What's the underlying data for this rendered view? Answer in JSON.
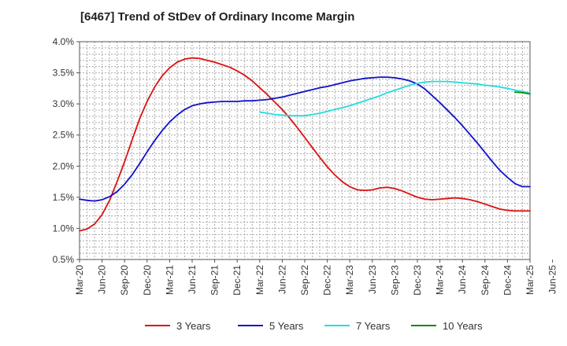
{
  "chart_data": {
    "type": "line",
    "title": "[6467]  Trend of StDev of Ordinary Income Margin",
    "xlabel": "",
    "ylabel": "",
    "x_ticks": [
      "Mar-20",
      "Jun-20",
      "Sep-20",
      "Dec-20",
      "Mar-21",
      "Jun-21",
      "Sep-21",
      "Dec-21",
      "Mar-22",
      "Jun-22",
      "Sep-22",
      "Dec-22",
      "Mar-23",
      "Jun-23",
      "Sep-23",
      "Dec-23",
      "Mar-24",
      "Jun-24",
      "Sep-24",
      "Dec-24",
      "Mar-25",
      "Jun-25"
    ],
    "y_ticks": [
      "4.0%",
      "3.5%",
      "3.0%",
      "2.5%",
      "2.0%",
      "1.5%",
      "1.0%",
      "0.5%"
    ],
    "ylim": [
      0.5,
      4.0
    ],
    "grid": true,
    "legend_position": "bottom",
    "series": [
      {
        "name": "3 Years",
        "color": "#dd1111",
        "x": [
          "Mar-20",
          "Apr-20",
          "May-20",
          "Jun-20",
          "Jul-20",
          "Aug-20",
          "Sep-20",
          "Oct-20",
          "Nov-20",
          "Dec-20",
          "Jan-21",
          "Feb-21",
          "Mar-21",
          "Apr-21",
          "May-21",
          "Jun-21",
          "Jul-21",
          "Aug-21",
          "Sep-21",
          "Oct-21",
          "Nov-21",
          "Dec-21",
          "Jan-22",
          "Feb-22",
          "Mar-22",
          "Apr-22",
          "May-22",
          "Jun-22",
          "Jul-22",
          "Aug-22",
          "Sep-22",
          "Oct-22",
          "Nov-22",
          "Dec-22",
          "Jan-23",
          "Feb-23",
          "Mar-23",
          "Apr-23",
          "May-23",
          "Jun-23",
          "Jul-23",
          "Aug-23",
          "Sep-23",
          "Oct-23",
          "Nov-23",
          "Dec-23",
          "Jan-24",
          "Feb-24",
          "Mar-24",
          "Apr-24",
          "May-24",
          "Jun-24",
          "Jul-24",
          "Aug-24",
          "Sep-24",
          "Oct-24",
          "Nov-24",
          "Dec-24",
          "Jan-25",
          "Feb-25",
          "Mar-25"
        ],
        "values": [
          0.96,
          0.99,
          1.07,
          1.22,
          1.45,
          1.75,
          2.07,
          2.42,
          2.76,
          3.04,
          3.27,
          3.45,
          3.58,
          3.67,
          3.72,
          3.74,
          3.73,
          3.7,
          3.67,
          3.63,
          3.59,
          3.53,
          3.46,
          3.37,
          3.26,
          3.15,
          3.03,
          2.91,
          2.77,
          2.62,
          2.46,
          2.3,
          2.14,
          1.99,
          1.86,
          1.75,
          1.67,
          1.62,
          1.61,
          1.62,
          1.65,
          1.66,
          1.64,
          1.6,
          1.55,
          1.5,
          1.47,
          1.46,
          1.47,
          1.48,
          1.49,
          1.48,
          1.46,
          1.43,
          1.39,
          1.35,
          1.31,
          1.29,
          1.28,
          1.28,
          1.28
        ]
      },
      {
        "name": "5 Years",
        "color": "#1111cc",
        "x": [
          "Mar-20",
          "Apr-20",
          "May-20",
          "Jun-20",
          "Jul-20",
          "Aug-20",
          "Sep-20",
          "Oct-20",
          "Nov-20",
          "Dec-20",
          "Jan-21",
          "Feb-21",
          "Mar-21",
          "Apr-21",
          "May-21",
          "Jun-21",
          "Jul-21",
          "Aug-21",
          "Sep-21",
          "Oct-21",
          "Nov-21",
          "Dec-21",
          "Jan-22",
          "Feb-22",
          "Mar-22",
          "Apr-22",
          "May-22",
          "Jun-22",
          "Jul-22",
          "Aug-22",
          "Sep-22",
          "Oct-22",
          "Nov-22",
          "Dec-22",
          "Jan-23",
          "Feb-23",
          "Mar-23",
          "Apr-23",
          "May-23",
          "Jun-23",
          "Jul-23",
          "Aug-23",
          "Sep-23",
          "Oct-23",
          "Nov-23",
          "Dec-23",
          "Jan-24",
          "Feb-24",
          "Mar-24",
          "Apr-24",
          "May-24",
          "Jun-24",
          "Jul-24",
          "Aug-24",
          "Sep-24",
          "Oct-24",
          "Nov-24",
          "Dec-24",
          "Jan-25",
          "Feb-25",
          "Mar-25"
        ],
        "values": [
          1.47,
          1.45,
          1.44,
          1.46,
          1.51,
          1.59,
          1.71,
          1.86,
          2.04,
          2.23,
          2.41,
          2.57,
          2.71,
          2.82,
          2.91,
          2.97,
          3.0,
          3.02,
          3.03,
          3.04,
          3.04,
          3.04,
          3.05,
          3.05,
          3.06,
          3.07,
          3.09,
          3.11,
          3.14,
          3.17,
          3.2,
          3.23,
          3.26,
          3.28,
          3.31,
          3.34,
          3.37,
          3.39,
          3.41,
          3.42,
          3.43,
          3.43,
          3.42,
          3.4,
          3.37,
          3.32,
          3.24,
          3.13,
          3.02,
          2.9,
          2.78,
          2.65,
          2.51,
          2.37,
          2.22,
          2.07,
          1.93,
          1.82,
          1.72,
          1.67,
          1.67
        ]
      },
      {
        "name": "7 Years",
        "color": "#22dddd",
        "x": [
          "Mar-22",
          "Apr-22",
          "May-22",
          "Jun-22",
          "Jul-22",
          "Aug-22",
          "Sep-22",
          "Oct-22",
          "Nov-22",
          "Dec-22",
          "Jan-23",
          "Feb-23",
          "Mar-23",
          "Apr-23",
          "May-23",
          "Jun-23",
          "Jul-23",
          "Aug-23",
          "Sep-23",
          "Oct-23",
          "Nov-23",
          "Dec-23",
          "Jan-24",
          "Feb-24",
          "Mar-24",
          "Apr-24",
          "May-24",
          "Jun-24",
          "Jul-24",
          "Aug-24",
          "Sep-24",
          "Oct-24",
          "Nov-24",
          "Dec-24",
          "Jan-25",
          "Feb-25",
          "Mar-25"
        ],
        "values": [
          2.87,
          2.85,
          2.83,
          2.82,
          2.81,
          2.81,
          2.81,
          2.83,
          2.85,
          2.88,
          2.91,
          2.94,
          2.97,
          3.01,
          3.05,
          3.09,
          3.13,
          3.18,
          3.22,
          3.26,
          3.3,
          3.33,
          3.35,
          3.36,
          3.36,
          3.36,
          3.35,
          3.34,
          3.33,
          3.32,
          3.3,
          3.29,
          3.27,
          3.25,
          3.22,
          3.2,
          3.17
        ]
      },
      {
        "name": "10 Years",
        "color": "#118811",
        "x": [
          "Jan-25",
          "Feb-25",
          "Mar-25"
        ],
        "values": [
          3.19,
          3.18,
          3.16
        ]
      }
    ]
  }
}
